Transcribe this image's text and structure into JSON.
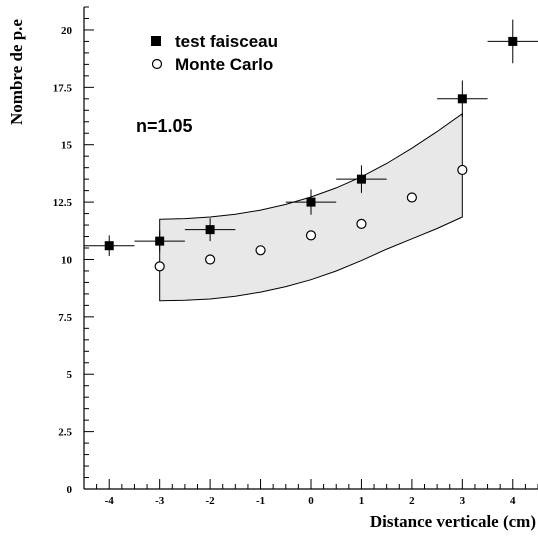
{
  "chart_data": {
    "type": "scatter",
    "title": "",
    "xlabel": "Distance verticale (cm)",
    "ylabel": "Nombre de p.e",
    "xlim": [
      -4.5,
      4.5
    ],
    "ylim": [
      0,
      21
    ],
    "x_ticks": [
      -4,
      -3,
      -2,
      -1,
      0,
      1,
      2,
      3,
      4
    ],
    "y_ticks": [
      0,
      2.5,
      5,
      7.5,
      10,
      12.5,
      15,
      17.5,
      20
    ],
    "x_tick_labels": [
      "-4",
      "-3",
      "-2",
      "-1",
      "0",
      "1",
      "2",
      "3",
      "4"
    ],
    "y_tick_labels": [
      "0",
      "2.5",
      "5",
      "7.5",
      "10",
      "12.5",
      "15",
      "17.5",
      "20"
    ],
    "legend_position": "top-left",
    "annotation": "n=1.05",
    "series": [
      {
        "name": "test faisceau",
        "marker": "filled-square",
        "color": "#000000",
        "points": [
          {
            "x": -4,
            "y": 10.6,
            "xerr": 0.5,
            "yerr": 0.45
          },
          {
            "x": -3,
            "y": 10.8,
            "xerr": 0.5,
            "yerr": 0.45
          },
          {
            "x": -2,
            "y": 11.3,
            "xerr": 0.5,
            "yerr": 0.5
          },
          {
            "x": 0,
            "y": 12.5,
            "xerr": 0.5,
            "yerr": 0.55
          },
          {
            "x": 1,
            "y": 13.5,
            "xerr": 0.5,
            "yerr": 0.6
          },
          {
            "x": 3,
            "y": 17.0,
            "xerr": 0.5,
            "yerr": 0.8
          },
          {
            "x": 4,
            "y": 19.5,
            "xerr": 0.5,
            "yerr": 0.95
          }
        ]
      },
      {
        "name": "Monte Carlo",
        "marker": "open-circle",
        "color": "#000000",
        "points": [
          {
            "x": -3,
            "y": 9.7
          },
          {
            "x": -2,
            "y": 10.0
          },
          {
            "x": -1,
            "y": 10.4
          },
          {
            "x": 0,
            "y": 11.05
          },
          {
            "x": 1,
            "y": 11.55
          },
          {
            "x": 2,
            "y": 12.7
          },
          {
            "x": 3,
            "y": 13.9
          }
        ]
      }
    ],
    "band": {
      "fill": "#e8e8e8",
      "x": [
        -3,
        -2.5,
        -2,
        -1.5,
        -1,
        -0.5,
        0,
        0.5,
        1,
        1.5,
        2,
        2.5,
        3
      ],
      "upper": [
        11.75,
        11.78,
        11.85,
        11.97,
        12.15,
        12.4,
        12.72,
        13.12,
        13.6,
        14.18,
        14.85,
        15.57,
        16.35
      ],
      "lower": [
        8.2,
        8.22,
        8.28,
        8.4,
        8.58,
        8.82,
        9.12,
        9.5,
        9.95,
        10.45,
        10.9,
        11.35,
        11.85
      ]
    }
  }
}
